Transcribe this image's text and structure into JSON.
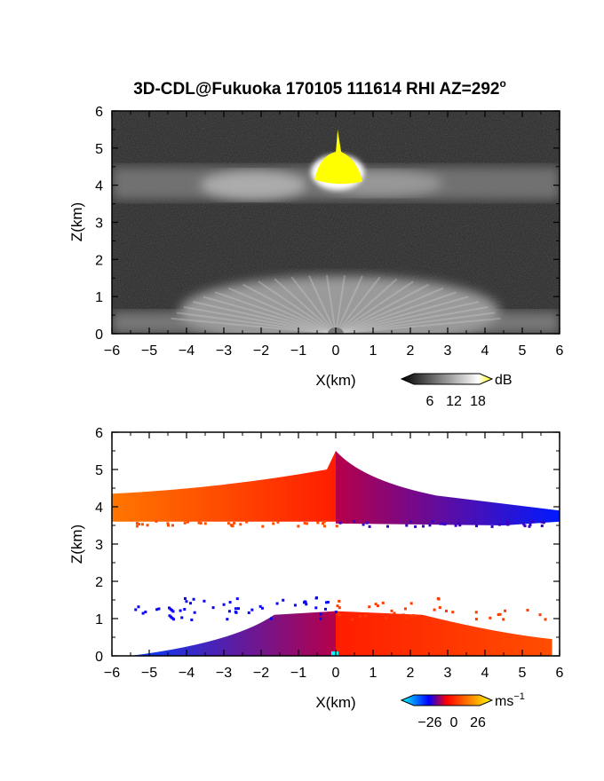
{
  "title": "3D-CDL@Fukuoka 170105 111614 RHI AZ=292",
  "title_sup": "o",
  "chart_data": [
    {
      "type": "heatmap",
      "panel": "reflectivity",
      "xlabel": "X(km)",
      "ylabel": "Z(km)",
      "xlim": [
        -6,
        6
      ],
      "ylim": [
        0,
        6
      ],
      "x_ticks": [
        "−6",
        "−5",
        "−4",
        "−3",
        "−2",
        "−1",
        "0",
        "1",
        "2",
        "3",
        "4",
        "5",
        "6"
      ],
      "y_ticks": [
        "0",
        "1",
        "2",
        "3",
        "4",
        "5",
        "6"
      ],
      "colorbar": {
        "unit": "dB",
        "ticks": [
          "6",
          "12",
          "18"
        ],
        "range": [
          0,
          20
        ],
        "colors": [
          "#000000",
          "#ffffff",
          "#ffff00"
        ]
      },
      "layers": [
        {
          "name": "cloud layer",
          "x_range": [
            -6,
            6
          ],
          "z_range": [
            3.6,
            4.5
          ],
          "level": 12
        },
        {
          "name": "cloud top",
          "x_center": 0.05,
          "z_range": [
            4.1,
            5.5
          ],
          "level": 20
        },
        {
          "name": "boundary layer",
          "x_range": [
            -6,
            6
          ],
          "z_range": [
            0,
            1.3
          ],
          "level": 8
        }
      ]
    },
    {
      "type": "heatmap",
      "panel": "doppler velocity",
      "xlabel": "X(km)",
      "ylabel": "Z(km)",
      "xlim": [
        -6,
        6
      ],
      "ylim": [
        0,
        6
      ],
      "x_ticks": [
        "−6",
        "−5",
        "−4",
        "−3",
        "−2",
        "−1",
        "0",
        "1",
        "2",
        "3",
        "4",
        "5",
        "6"
      ],
      "y_ticks": [
        "0",
        "1",
        "2",
        "3",
        "4",
        "5",
        "6"
      ],
      "colorbar": {
        "unit": "ms",
        "unit_sup": "−1",
        "ticks": [
          "−26",
          "0",
          "26"
        ],
        "range": [
          -26,
          26
        ],
        "colors": [
          "#00ffff",
          "#0000ff",
          "#ff0000",
          "#ffff00"
        ]
      },
      "layers": [
        {
          "name": "upper layer left",
          "x_range": [
            -6,
            0
          ],
          "z_range": [
            3.6,
            4.3
          ],
          "velocity": [
            12,
            3
          ]
        },
        {
          "name": "upper layer right",
          "x_range": [
            0,
            6
          ],
          "z_range": [
            3.5,
            4.3
          ],
          "velocity": [
            -3,
            -12
          ]
        },
        {
          "name": "lower layer left",
          "x_range": [
            -5.5,
            0
          ],
          "z_range": [
            0,
            1.2
          ],
          "velocity": [
            -14,
            -3
          ]
        },
        {
          "name": "lower layer right",
          "x_range": [
            0,
            5.8
          ],
          "z_range": [
            0,
            1.2
          ],
          "velocity": [
            3,
            8
          ]
        }
      ]
    }
  ]
}
